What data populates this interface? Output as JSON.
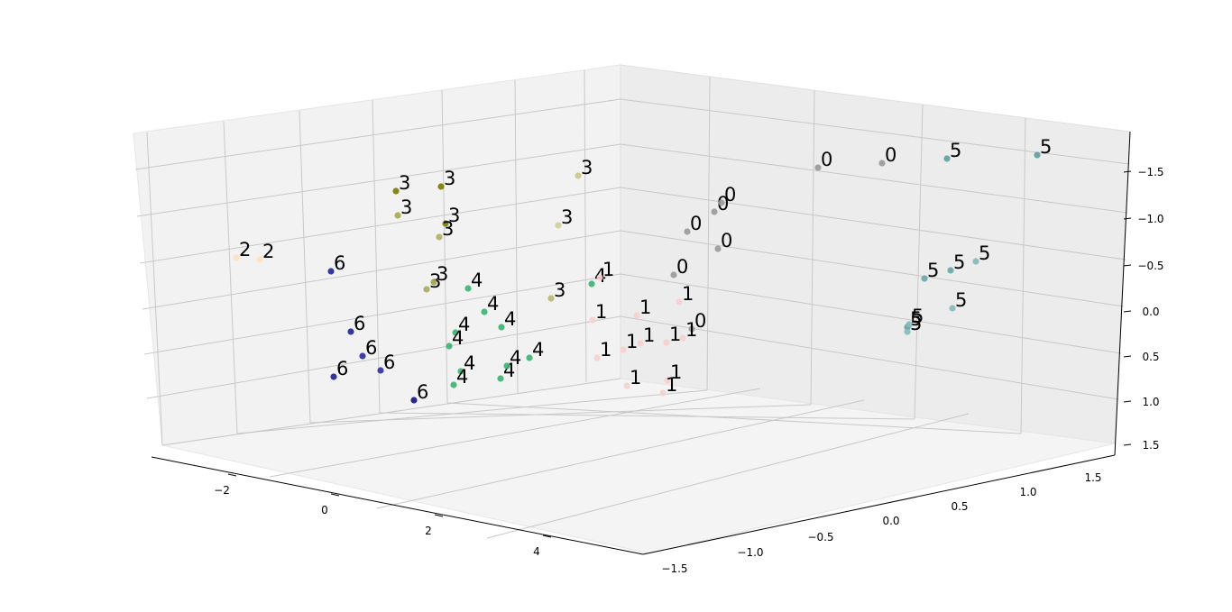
{
  "chart_data": {
    "type": "scatter",
    "projection": "3d",
    "grid": true,
    "axes": {
      "x": {
        "ticks": [
          "−2",
          "0",
          "2",
          "4"
        ]
      },
      "y": {
        "ticks": [
          "−1.5",
          "−1.0",
          "−0.5",
          "0.0",
          "0.5",
          "1.0",
          "1.5"
        ]
      },
      "z": {
        "ticks": [
          "−1.5",
          "−1.0",
          "−0.5",
          "0.0",
          "0.5",
          "1.0",
          "1.5"
        ]
      }
    },
    "cluster_colors": {
      "0": "#8c8c8c",
      "1": "#f4b6b6",
      "2": "#ffd9b3",
      "3": "#b8b86a",
      "4": "#3cb371",
      "5": "#5f9ea0",
      "6": "#1c1c86"
    },
    "points": [
      {
        "label": "0",
        "color": "#9a9a9a"
      },
      {
        "label": "0",
        "color": "#9a9a9a"
      },
      {
        "label": "0",
        "color": "#9a9a9a"
      },
      {
        "label": "0",
        "color": "#9a9a9a"
      },
      {
        "label": "0",
        "color": "#9a9a9a"
      },
      {
        "label": "0",
        "color": "#9a9a9a"
      },
      {
        "label": "0",
        "color": "#9a9a9a"
      },
      {
        "label": "0",
        "color": "#9a9a9a"
      },
      {
        "label": "5",
        "color": "#5f9ea0"
      },
      {
        "label": "5",
        "color": "#5f9ea0"
      },
      {
        "label": "5",
        "color": "#6aa6a8"
      },
      {
        "label": "5",
        "color": "#6aa6a8"
      },
      {
        "label": "5",
        "color": "#86b9ba"
      },
      {
        "label": "5",
        "color": "#86b9ba"
      },
      {
        "label": "5",
        "color": "#5f9ea0"
      },
      {
        "label": "5",
        "color": "#86b9ba"
      },
      {
        "label": "5",
        "color": "#86b9ba"
      },
      {
        "label": "3",
        "color": "#7a7a00"
      },
      {
        "label": "3",
        "color": "#7a7a00"
      },
      {
        "label": "3",
        "color": "#a8a850"
      },
      {
        "label": "3",
        "color": "#7a7a00"
      },
      {
        "label": "3",
        "color": "#b0b060"
      },
      {
        "label": "3",
        "color": "#c8c88a"
      },
      {
        "label": "3",
        "color": "#d0d09a"
      },
      {
        "label": "3",
        "color": "#a8a860"
      },
      {
        "label": "3",
        "color": "#b8b870"
      },
      {
        "label": "3",
        "color": "#a0a050"
      },
      {
        "label": "2",
        "color": "#ffe0c0"
      },
      {
        "label": "2",
        "color": "#ffe0c0"
      },
      {
        "label": "6",
        "color": "#22229a"
      },
      {
        "label": "6",
        "color": "#22229a"
      },
      {
        "label": "6",
        "color": "#2a2a9c"
      },
      {
        "label": "6",
        "color": "#30309e"
      },
      {
        "label": "6",
        "color": "#20208c"
      },
      {
        "label": "6",
        "color": "#141478"
      },
      {
        "label": "4",
        "color": "#3cb371"
      },
      {
        "label": "4",
        "color": "#3cb371"
      },
      {
        "label": "4",
        "color": "#3cb371"
      },
      {
        "label": "4",
        "color": "#3cb371"
      },
      {
        "label": "4",
        "color": "#3cb371"
      },
      {
        "label": "4",
        "color": "#3cb371"
      },
      {
        "label": "4",
        "color": "#3cb371"
      },
      {
        "label": "4",
        "color": "#3cb371"
      },
      {
        "label": "4",
        "color": "#3cb371"
      },
      {
        "label": "4",
        "color": "#3cb371"
      },
      {
        "label": "4",
        "color": "#3cb371"
      },
      {
        "label": "1",
        "color": "#f7d0d0"
      },
      {
        "label": "1",
        "color": "#f7d0d0"
      },
      {
        "label": "1",
        "color": "#f7d0d0"
      },
      {
        "label": "1",
        "color": "#f7d0d0"
      },
      {
        "label": "1",
        "color": "#f7d0d0"
      },
      {
        "label": "1",
        "color": "#f7d0d0"
      },
      {
        "label": "1",
        "color": "#f7d0d0"
      },
      {
        "label": "1",
        "color": "#f7d0d0"
      },
      {
        "label": "1",
        "color": "#f7d0d0"
      },
      {
        "label": "1",
        "color": "#f7d0d0"
      },
      {
        "label": "1",
        "color": "#f7d0d0"
      },
      {
        "label": "1",
        "color": "#f7d0d0"
      }
    ]
  }
}
